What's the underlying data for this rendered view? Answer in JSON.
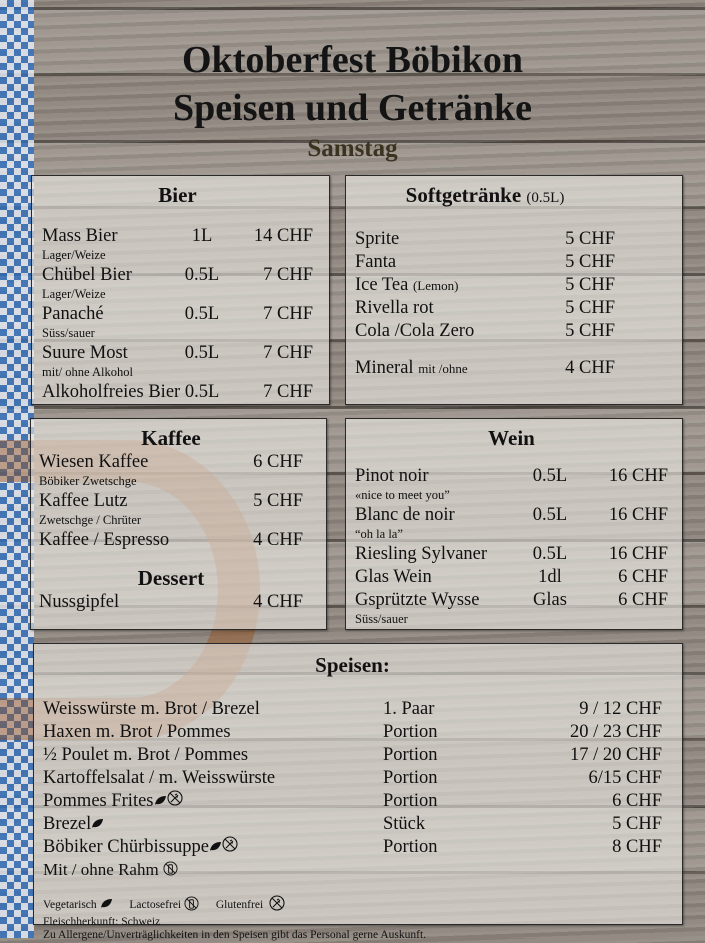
{
  "header": {
    "title_line1": "Oktoberfest Böbikon",
    "title_line2": "Speisen und Getränke",
    "day": "Samstag"
  },
  "bier": {
    "title": "Bier",
    "items": [
      {
        "name": "Mass Bier",
        "size": "1L",
        "price": "14 CHF",
        "note": "Lager/Weize"
      },
      {
        "name": "Chübel Bier",
        "size": "0.5L",
        "price": "7 CHF",
        "note": "Lager/Weize"
      },
      {
        "name": "Panaché",
        "size": "0.5L",
        "price": "7 CHF",
        "note": "Süss/sauer"
      },
      {
        "name": "Suure Most",
        "size": "0.5L",
        "price": "7 CHF",
        "note": "mit/ ohne Alkohol"
      },
      {
        "name": "Alkoholfreies Bier 0.5L",
        "size": "",
        "price": "7 CHF"
      }
    ]
  },
  "soft": {
    "title": "Softgetränke",
    "title_note": "(0.5L)",
    "items": [
      {
        "name": "Sprite",
        "price": "5 CHF"
      },
      {
        "name": "Fanta",
        "price": "5 CHF"
      },
      {
        "name": "Ice Tea",
        "name_small": "(Lemon)",
        "price": "5 CHF"
      },
      {
        "name": "Rivella rot",
        "price": "5 CHF"
      },
      {
        "name": "Cola /Cola Zero",
        "price": "5 CHF"
      },
      {
        "name": "Mineral",
        "name_small": "mit /ohne",
        "price": "4 CHF",
        "gap_before": true
      }
    ]
  },
  "kaffee": {
    "title": "Kaffee",
    "items": [
      {
        "name": "Wiesen Kaffee",
        "price": "6 CHF",
        "note": "Böbiker Zwetschge"
      },
      {
        "name": "Kaffee Lutz",
        "price": "5 CHF",
        "note": "Zwetschge / Chrüter"
      },
      {
        "name": "Kaffee / Espresso",
        "price": "4 CHF"
      }
    ],
    "dessert_title": "Dessert",
    "dessert_items": [
      {
        "name": "Nussgipfel",
        "price": "4 CHF"
      }
    ]
  },
  "wein": {
    "title": "Wein",
    "items": [
      {
        "name": "Pinot noir",
        "size": "0.5L",
        "price": "16 CHF",
        "note": "«nice to meet you”"
      },
      {
        "name": "Blanc de noir",
        "size": "0.5L",
        "price": "16 CHF",
        "note": "“oh la la”"
      },
      {
        "name": "Riesling Sylvaner",
        "size": "0.5L",
        "price": "16 CHF"
      },
      {
        "name": "Glas Wein",
        "size": "1dl",
        "price": "6 CHF"
      },
      {
        "name": "Gsprützte Wysse",
        "size": "Glas",
        "price": "6 CHF",
        "note": "Süss/sauer"
      }
    ]
  },
  "speisen": {
    "title": "Speisen:",
    "items": [
      {
        "name": "Weisswürste m. Brot / Brezel",
        "size": "1. Paar",
        "price": "9 / 12 CHF"
      },
      {
        "name": "Haxen m. Brot / Pommes",
        "size": "Portion",
        "price": "20 / 23 CHF"
      },
      {
        "name": "½  Poulet m. Brot / Pommes",
        "size": "Portion",
        "price": "17 / 20 CHF"
      },
      {
        "name": "Kartoffelsalat / m. Weisswürste",
        "size": "Portion",
        "price": "6/15 CHF"
      },
      {
        "name": "Pommes Frites",
        "icons": [
          "leaf-icon",
          "gluten-free-icon"
        ],
        "size": "Portion",
        "price": "6 CHF"
      },
      {
        "name": "Brezel",
        "icons": [
          "leaf-icon"
        ],
        "size": "Stück",
        "price": "5 CHF"
      },
      {
        "name": "Böbiker Chürbissuppe",
        "icons": [
          "leaf-icon",
          "gluten-free-icon"
        ],
        "size": "Portion",
        "price": "8 CHF",
        "note": "Mit / ohne Rahm",
        "note_icons": [
          "lactose-free-icon"
        ]
      }
    ],
    "legend": {
      "vegetarian": "Vegetarisch",
      "lactose_free": "Lactosefrei",
      "gluten_free": "Glutenfrei"
    },
    "origin": "Fleischherkunft: Schweiz",
    "allergy_note": "Zu Allergene/Unverträglichkeiten in den Speisen gibt das Personal gerne Auskunft."
  },
  "colors": {
    "subtitle": "#3a3320",
    "ribbon_blue": "#2f6fc0"
  }
}
